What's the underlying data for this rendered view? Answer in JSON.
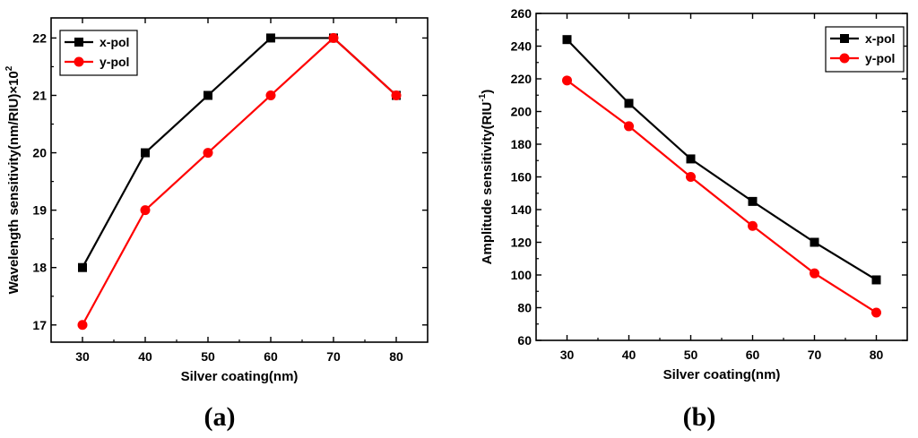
{
  "colors": {
    "x_pol": "#000000",
    "y_pol": "#ff0000"
  },
  "chart_data": [
    {
      "type": "line",
      "panel": "a",
      "caption_paren_open": "(",
      "caption_letter": "a",
      "caption_paren_close": ")",
      "xlabel": "Silver coating(nm)",
      "ylabel": "Wavelength sensitivity(nm/RIU)×10",
      "ylabel_superscript": "2",
      "x": [
        30,
        40,
        50,
        60,
        70,
        80
      ],
      "x_ticks": [
        "30",
        "40",
        "50",
        "60",
        "70",
        "80"
      ],
      "y_ticks": [
        "17",
        "18",
        "19",
        "20",
        "21",
        "22"
      ],
      "xlim": [
        25,
        85
      ],
      "ylim": [
        16.7,
        22.35
      ],
      "legend_position": "top-left",
      "series": [
        {
          "name": "x-pol",
          "marker": "square",
          "values": [
            18,
            20,
            21,
            22,
            22,
            21
          ]
        },
        {
          "name": "y-pol",
          "marker": "circle",
          "values": [
            17,
            19,
            20,
            21,
            22,
            21
          ]
        }
      ]
    },
    {
      "type": "line",
      "panel": "b",
      "caption_paren_open": "(",
      "caption_letter": "b",
      "caption_paren_close": ")",
      "xlabel": "Silver coating(nm)",
      "ylabel": "Amplitude sensitivity(RIU",
      "ylabel_superscript": "-1",
      "ylabel_suffix": ")",
      "x": [
        30,
        40,
        50,
        60,
        70,
        80
      ],
      "x_ticks": [
        "30",
        "40",
        "50",
        "60",
        "70",
        "80"
      ],
      "y_ticks": [
        "60",
        "80",
        "100",
        "120",
        "140",
        "160",
        "180",
        "200",
        "220",
        "240",
        "260"
      ],
      "xlim": [
        25,
        85
      ],
      "ylim": [
        60,
        260
      ],
      "legend_position": "top-right",
      "series": [
        {
          "name": "x-pol",
          "marker": "square",
          "values": [
            244,
            205,
            171,
            145,
            120,
            97
          ]
        },
        {
          "name": "y-pol",
          "marker": "circle",
          "values": [
            219,
            191,
            160,
            130,
            101,
            77
          ]
        }
      ]
    }
  ]
}
